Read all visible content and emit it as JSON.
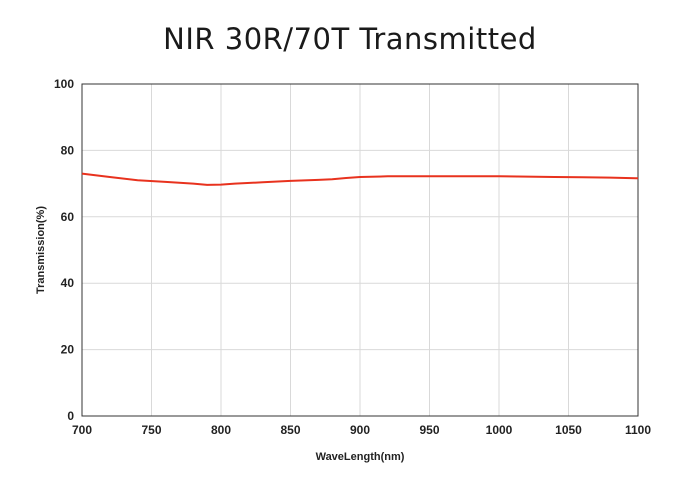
{
  "chart_data": {
    "type": "line",
    "title": "NIR 30R/70T Transmitted",
    "xlabel": "WaveLength(nm)",
    "ylabel": "Transmission(%)",
    "xlim": [
      700,
      1100
    ],
    "ylim": [
      0,
      100
    ],
    "xticks": [
      700,
      750,
      800,
      850,
      900,
      950,
      1000,
      1050,
      1100
    ],
    "yticks": [
      0,
      20,
      40,
      60,
      80,
      100
    ],
    "grid": true,
    "series": [
      {
        "color": "#e8321e",
        "x": [
          700,
          720,
          740,
          760,
          780,
          790,
          800,
          810,
          830,
          850,
          870,
          880,
          890,
          900,
          920,
          940,
          960,
          980,
          1000,
          1020,
          1040,
          1060,
          1080,
          1100
        ],
        "y": [
          73.0,
          72.0,
          71.0,
          70.5,
          70.0,
          69.6,
          69.7,
          70.0,
          70.4,
          70.8,
          71.1,
          71.3,
          71.7,
          72.0,
          72.2,
          72.2,
          72.2,
          72.2,
          72.2,
          72.1,
          72.0,
          71.9,
          71.8,
          71.6
        ]
      }
    ]
  }
}
